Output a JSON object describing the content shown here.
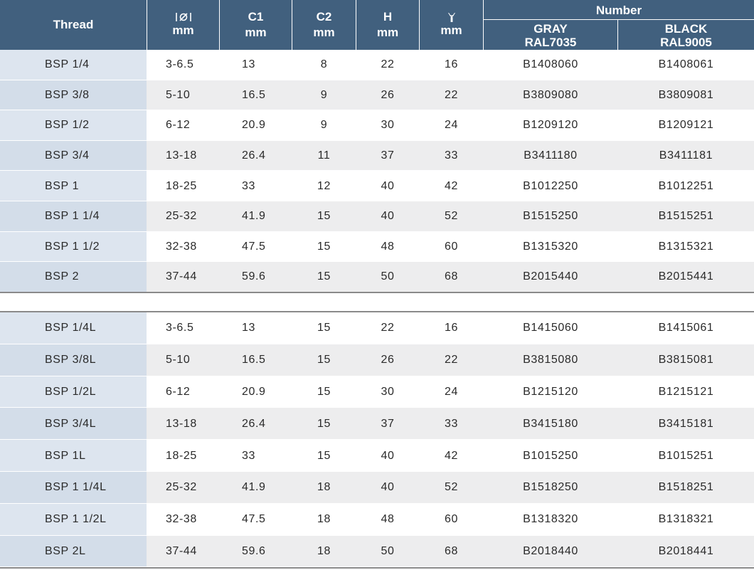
{
  "header": {
    "thread": "Thread",
    "diameter_unit": "mm",
    "c1": "C1",
    "c1_unit": "mm",
    "c2": "C2",
    "c2_unit": "mm",
    "h": "H",
    "h_unit": "mm",
    "wrench_unit": "mm",
    "number": "Number",
    "gray_line1": "GRAY",
    "gray_line2": "RAL7035",
    "black_line1": "BLACK",
    "black_line2": "RAL9005"
  },
  "icons": {
    "diameter": "diameter-icon",
    "wrench": "wrench-icon"
  },
  "colors": {
    "header": "#41607e",
    "thread_col": "#dde5ef",
    "row_alt": "#ededee"
  },
  "table1": [
    {
      "thread": "BSP 1/4",
      "dia": "3-6.5",
      "c1": "13",
      "c2": "8",
      "h": "22",
      "sw": "16",
      "gray": "B1408060",
      "black": "B1408061"
    },
    {
      "thread": "BSP 3/8",
      "dia": "5-10",
      "c1": "16.5",
      "c2": "9",
      "h": "26",
      "sw": "22",
      "gray": "B3809080",
      "black": "B3809081"
    },
    {
      "thread": "BSP 1/2",
      "dia": "6-12",
      "c1": "20.9",
      "c2": "9",
      "h": "30",
      "sw": "24",
      "gray": "B1209120",
      "black": "B1209121"
    },
    {
      "thread": "BSP 3/4",
      "dia": "13-18",
      "c1": "26.4",
      "c2": "11",
      "h": "37",
      "sw": "33",
      "gray": "B3411180",
      "black": "B3411181"
    },
    {
      "thread": "BSP 1",
      "dia": "18-25",
      "c1": "33",
      "c2": "12",
      "h": "40",
      "sw": "42",
      "gray": "B1012250",
      "black": "B1012251"
    },
    {
      "thread": "BSP 1 1/4",
      "dia": "25-32",
      "c1": "41.9",
      "c2": "15",
      "h": "40",
      "sw": "52",
      "gray": "B1515250",
      "black": "B1515251"
    },
    {
      "thread": "BSP 1 1/2",
      "dia": "32-38",
      "c1": "47.5",
      "c2": "15",
      "h": "48",
      "sw": "60",
      "gray": "B1315320",
      "black": "B1315321"
    },
    {
      "thread": "BSP 2",
      "dia": "37-44",
      "c1": "59.6",
      "c2": "15",
      "h": "50",
      "sw": "68",
      "gray": "B2015440",
      "black": "B2015441"
    }
  ],
  "table2": [
    {
      "thread": "BSP 1/4L",
      "dia": "3-6.5",
      "c1": "13",
      "c2": "15",
      "h": "22",
      "sw": "16",
      "gray": "B1415060",
      "black": "B1415061"
    },
    {
      "thread": "BSP 3/8L",
      "dia": "5-10",
      "c1": "16.5",
      "c2": "15",
      "h": "26",
      "sw": "22",
      "gray": "B3815080",
      "black": "B3815081"
    },
    {
      "thread": "BSP 1/2L",
      "dia": "6-12",
      "c1": "20.9",
      "c2": "15",
      "h": "30",
      "sw": "24",
      "gray": "B1215120",
      "black": "B1215121"
    },
    {
      "thread": "BSP 3/4L",
      "dia": "13-18",
      "c1": "26.4",
      "c2": "15",
      "h": "37",
      "sw": "33",
      "gray": "B3415180",
      "black": "B3415181"
    },
    {
      "thread": "BSP 1L",
      "dia": "18-25",
      "c1": "33",
      "c2": "15",
      "h": "40",
      "sw": "42",
      "gray": "B1015250",
      "black": "B1015251"
    },
    {
      "thread": "BSP 1 1/4L",
      "dia": "25-32",
      "c1": "41.9",
      "c2": "18",
      "h": "40",
      "sw": "52",
      "gray": "B1518250",
      "black": "B1518251"
    },
    {
      "thread": "BSP 1 1/2L",
      "dia": "32-38",
      "c1": "47.5",
      "c2": "18",
      "h": "48",
      "sw": "60",
      "gray": "B1318320",
      "black": "B1318321"
    },
    {
      "thread": "BSP 2L",
      "dia": "37-44",
      "c1": "59.6",
      "c2": "18",
      "h": "50",
      "sw": "68",
      "gray": "B2018440",
      "black": "B2018441"
    }
  ]
}
